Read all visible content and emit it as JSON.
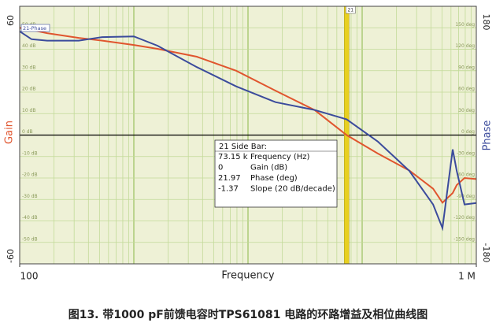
{
  "chart_data": {
    "type": "line",
    "x_label": "Frequency",
    "y_label": "Gain",
    "y2_label": "Phase",
    "x": [
      100,
      127,
      174,
      329,
      530,
      1000,
      1610,
      3560,
      7880,
      17400,
      38500,
      73150,
      137000,
      259000,
      418000,
      505000,
      621000,
      673000,
      788000,
      1000000
    ],
    "series": [
      {
        "name": "Gain",
        "color": "#e0552e",
        "values": [
          50,
          49,
          47.5,
          45.3,
          44,
          42,
          40.2,
          36.5,
          30,
          20.7,
          11.6,
          0,
          -8.6,
          -16.5,
          -25,
          -31.5,
          -27,
          -23.3,
          -20,
          -20.5
        ]
      },
      {
        "name": "21-Phase",
        "color": "#3b4b9c",
        "axis": "y2",
        "values": [
          145,
          134,
          132,
          132,
          137,
          138,
          125,
          95,
          68,
          46,
          35,
          22,
          -9,
          -50,
          -97,
          -130,
          -20,
          -50,
          -97,
          -95
        ]
      }
    ],
    "xlim": [
      100,
      1000000
    ],
    "xlog": true,
    "xticks": [
      {
        "value": 100,
        "label": "100"
      },
      {
        "value": 1000000,
        "label": "1 M"
      }
    ],
    "ylim": [
      -60,
      60
    ],
    "yticks": [
      60,
      {
        "value": 50,
        "label": "50 dB"
      },
      {
        "value": 40,
        "label": "40 dB"
      },
      {
        "value": 30,
        "label": "30 dB"
      },
      {
        "value": 20,
        "label": "20 dB"
      },
      {
        "value": 10,
        "label": "10 dB"
      },
      {
        "value": 0,
        "label": "0 dB"
      },
      {
        "value": -10,
        "label": "-10 dB"
      },
      {
        "value": -20,
        "label": "-20 dB"
      },
      {
        "value": -30,
        "label": "-30 dB"
      },
      {
        "value": -40,
        "label": "-40 dB"
      },
      {
        "value": -50,
        "label": "-50 dB"
      },
      -60
    ],
    "y2lim": [
      -180,
      180
    ],
    "y2ticks": [
      180,
      {
        "value": 150,
        "label": "150 deg"
      },
      {
        "value": 120,
        "label": "120 deg"
      },
      {
        "value": 90,
        "label": "90 deg"
      },
      {
        "value": 60,
        "label": "60 deg"
      },
      {
        "value": 30,
        "label": "30 deg"
      },
      {
        "value": 0,
        "label": "0 deg"
      },
      {
        "value": -30,
        "label": "-30 deg"
      },
      {
        "value": -60,
        "label": "-60 deg"
      },
      {
        "value": -90,
        "label": "-90 deg"
      },
      {
        "value": -120,
        "label": "-120 deg"
      },
      {
        "value": -150,
        "label": "-150 deg"
      },
      -180
    ],
    "grid": true,
    "marker": {
      "x": 73150,
      "label": "21",
      "color": "#e8d020"
    },
    "readout": {
      "title": "21 Side Bar:",
      "rows": [
        [
          "73.15 k",
          "Frequency (Hz)"
        ],
        [
          "0",
          "Gain (dB)"
        ],
        [
          "21.97",
          "Phase (deg)"
        ],
        [
          "-1.37",
          "Slope (20 dB/decade)"
        ]
      ]
    },
    "caption": "图13. 带1000 pF前馈电容时TPS61081 电路的环路增益及相位曲线图"
  }
}
